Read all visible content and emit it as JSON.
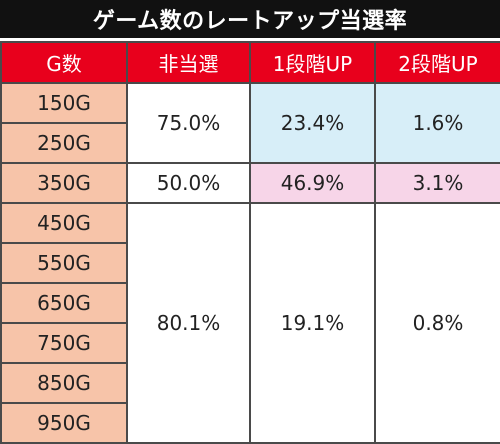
{
  "title": "ゲーム数のレートアップ当選率",
  "headers": [
    "G数",
    "非当選",
    "1段階UP",
    "2段階UP"
  ],
  "games": [
    "150G",
    "250G",
    "350G",
    "450G",
    "550G",
    "650G",
    "750G",
    "850G",
    "950G"
  ],
  "groups": [
    {
      "no_win": "75.0%",
      "up1": "23.4%",
      "up2": "1.6%"
    },
    {
      "no_win": "50.0%",
      "up1": "46.9%",
      "up2": "3.1%"
    },
    {
      "no_win": "80.1%",
      "up1": "19.1%",
      "up2": "0.8%"
    }
  ],
  "colors": {
    "header": "#e8001c",
    "title_bg": "#111111",
    "game_cell": "#f7c4a9",
    "group1_highlight": "#d7eef8",
    "group2_highlight": "#f7d5e8"
  }
}
